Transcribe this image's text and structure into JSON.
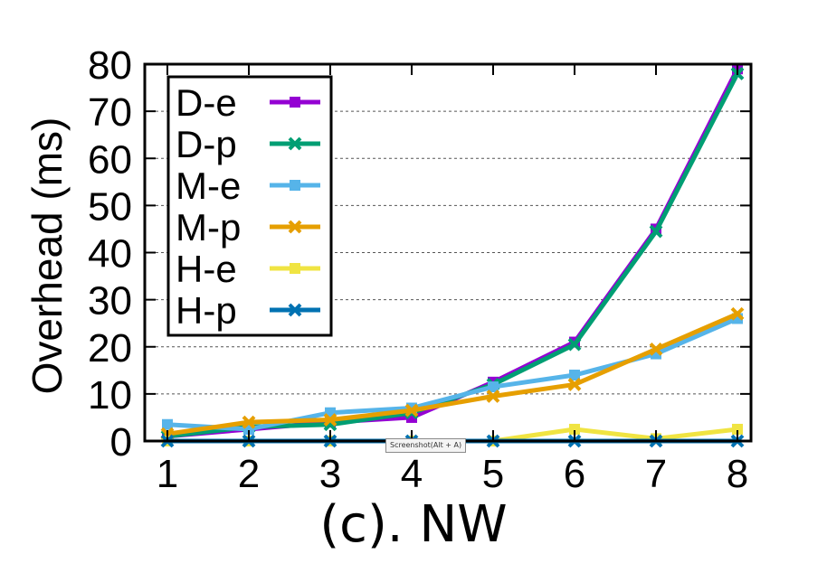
{
  "caption": "(c). NW",
  "tooltip": "Screenshot(Alt + A)",
  "chart_data": {
    "type": "line",
    "x": [
      1,
      2,
      3,
      4,
      5,
      6,
      7,
      8
    ],
    "ylabel": "Overhead (ms)",
    "xlabel": "",
    "xlim": [
      1,
      8
    ],
    "ylim": [
      0,
      80
    ],
    "xticks": [
      "1",
      "2",
      "3",
      "4",
      "5",
      "6",
      "7",
      "8"
    ],
    "yticks": [
      "0",
      "10",
      "20",
      "30",
      "40",
      "50",
      "60",
      "70",
      "80"
    ],
    "grid": "horizontal dashed",
    "legend_position": "top-left",
    "series": [
      {
        "name": "D-e",
        "color": "#9400D3",
        "marker": "square",
        "values": [
          1,
          2.5,
          4,
          5,
          12.5,
          21,
          45,
          79
        ]
      },
      {
        "name": "D-p",
        "color": "#009E73",
        "marker": "x",
        "values": [
          1,
          3,
          3.5,
          6,
          12,
          20.5,
          44.5,
          78
        ]
      },
      {
        "name": "M-e",
        "color": "#56B4E9",
        "marker": "square",
        "values": [
          3.5,
          2.5,
          6,
          7,
          11.5,
          14,
          18.5,
          26
        ]
      },
      {
        "name": "M-p",
        "color": "#E69F00",
        "marker": "x",
        "values": [
          1.5,
          4,
          4.5,
          6.5,
          9.5,
          12,
          19.5,
          27
        ]
      },
      {
        "name": "H-e",
        "color": "#F0E442",
        "marker": "square",
        "values": [
          0,
          0,
          0,
          0,
          0,
          2.5,
          0.5,
          2.5
        ]
      },
      {
        "name": "H-p",
        "color": "#0072B2",
        "marker": "x",
        "values": [
          0,
          0,
          0,
          0,
          0,
          0,
          0,
          0
        ]
      }
    ]
  }
}
